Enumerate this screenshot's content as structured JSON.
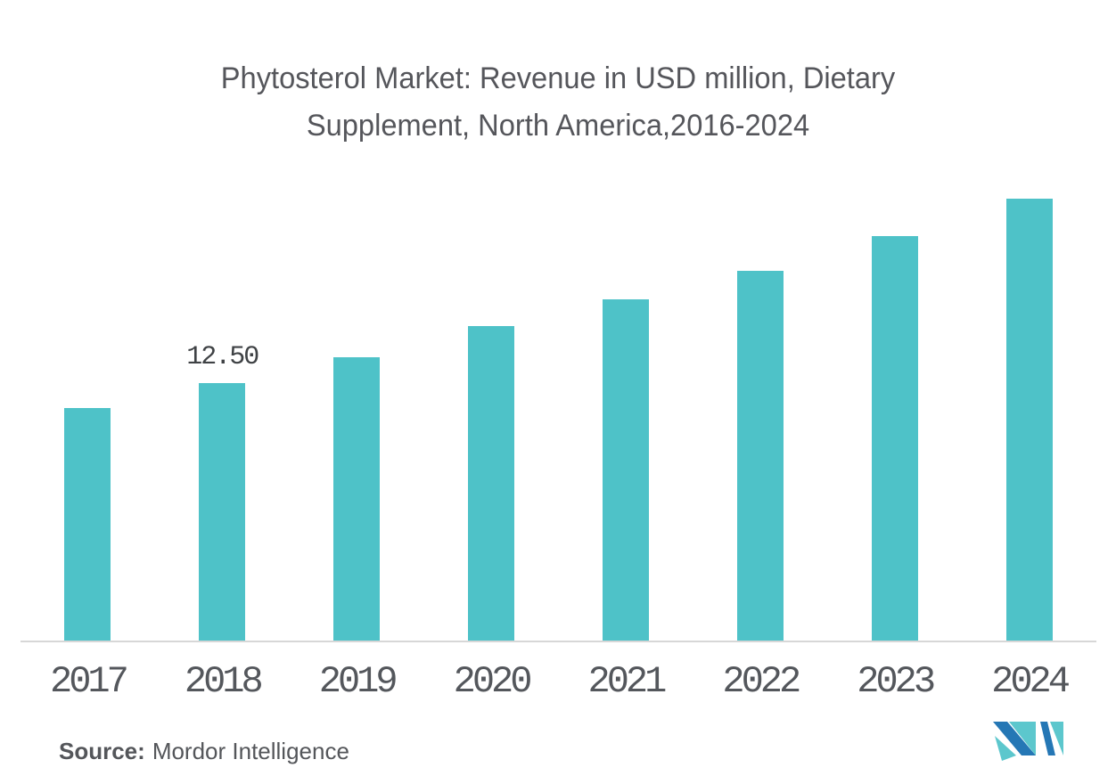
{
  "title": {
    "line1": "Phytosterol Market: Revenue in USD million, Dietary",
    "line2": "Supplement, North America,2016-2024"
  },
  "source": {
    "prefix": "Source:",
    "text": "Mordor Intelligence"
  },
  "logo": {
    "name": "mordor-intelligence-logo"
  },
  "colors": {
    "bar": "#4ec2c8",
    "axis_line": "#d7d7d7",
    "title_text": "#55565b",
    "tick_text": "#54575c",
    "data_label_text": "#3f4245",
    "source_text": "#54565a",
    "logo_teal": "#5cc7cd",
    "logo_blue": "#2577b5"
  },
  "chart_data": {
    "type": "bar",
    "title": "Phytosterol Market: Revenue in USD million, Dietary Supplement, North America,2016-2024",
    "categories": [
      "2017",
      "2018",
      "2019",
      "2020",
      "2021",
      "2022",
      "2023",
      "2024"
    ],
    "values": [
      11.3,
      12.5,
      13.75,
      15.25,
      16.55,
      17.95,
      19.65,
      21.45
    ],
    "data_labels": [
      "",
      "12.50",
      "",
      "",
      "",
      "",
      "",
      ""
    ],
    "xlabel": "",
    "ylabel": "",
    "ylim": [
      0,
      23
    ],
    "grid": false,
    "legend": false,
    "bar_color": "#4ec2c8"
  }
}
